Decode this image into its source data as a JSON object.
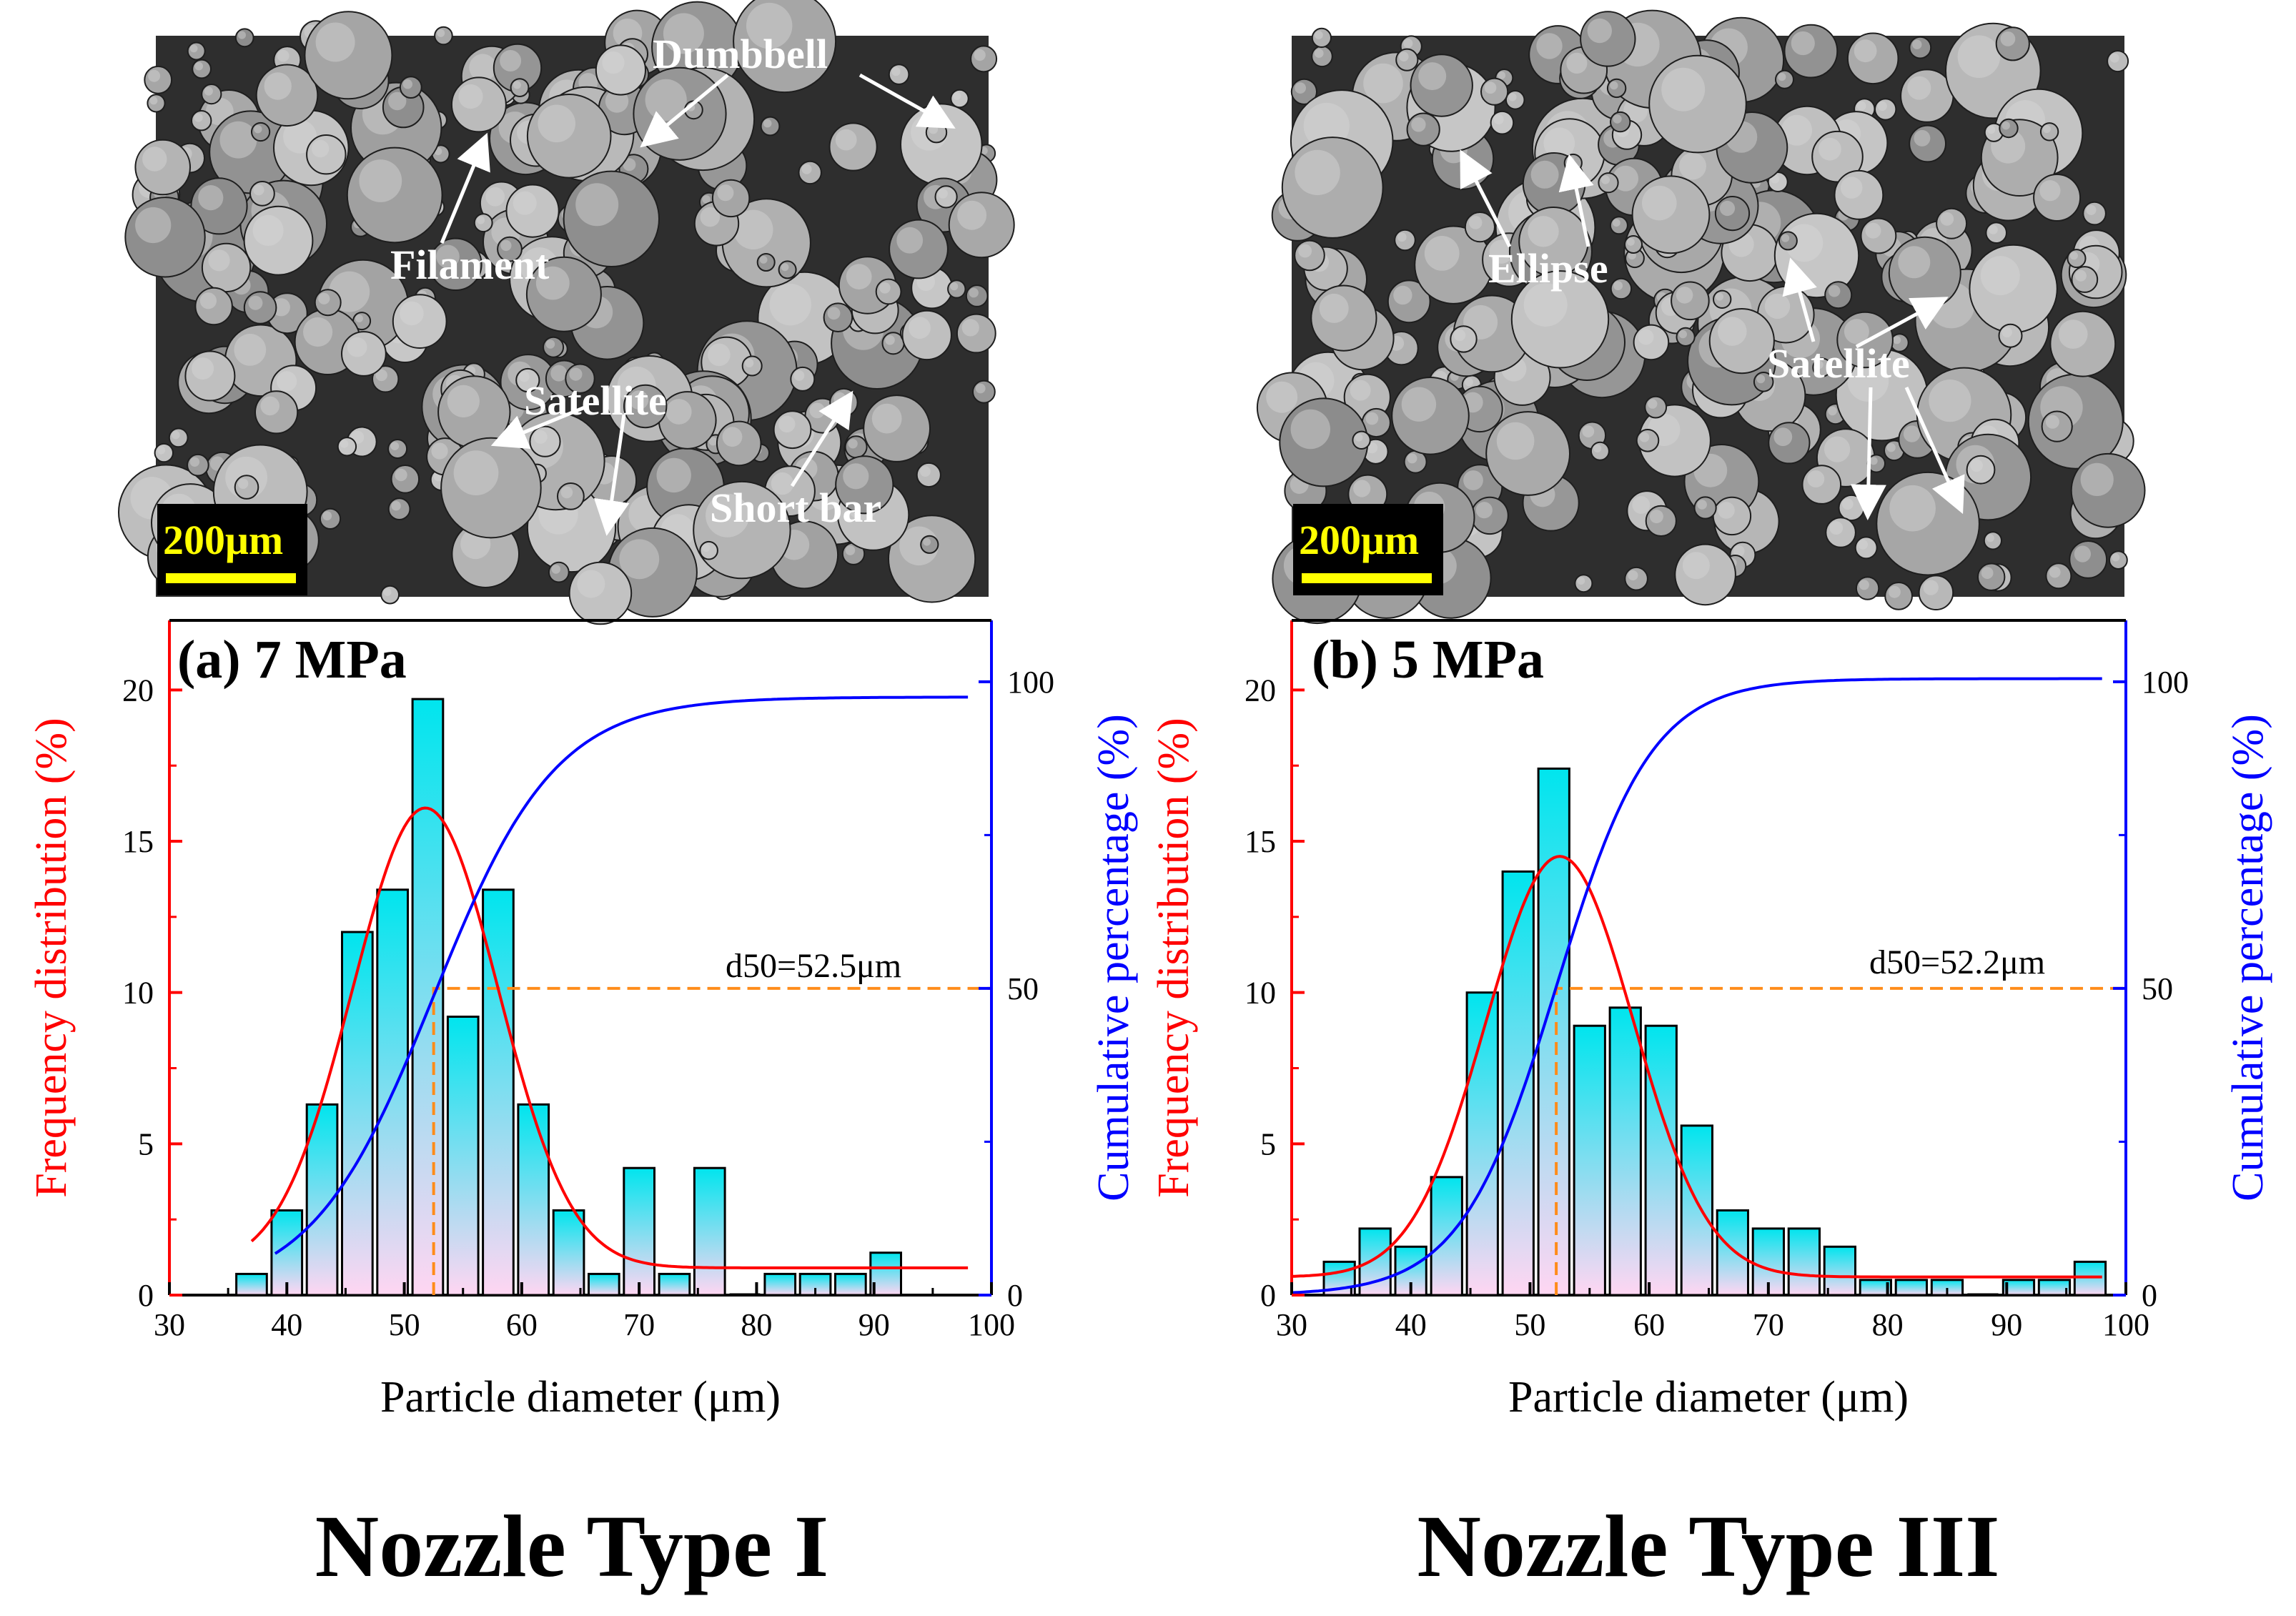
{
  "colors": {
    "frequency_axis": "#ff0000",
    "cumulative_axis": "#0000ff",
    "d50_line": "#ff8c1a",
    "bar_top": "#00e5ee",
    "bar_bottom": "#ffd6f2",
    "scale_bar": "#ffff00",
    "micrograph_bg": "#2b2b2b",
    "particle": "#a8a8a8"
  },
  "panels": [
    {
      "micrograph": {
        "scale_label": "200μm",
        "labels": {
          "dumbbell": "Dumbbell",
          "filament": "Filament",
          "satellite": "Satellite",
          "short_bar": "Short bar"
        }
      },
      "nozzle_label": "Nozzle Type I"
    },
    {
      "micrograph": {
        "scale_label": "200μm",
        "labels": {
          "ellipse": "Ellipse",
          "satellite": "Satellite"
        }
      },
      "nozzle_label": "Nozzle Type III"
    }
  ],
  "chart_data": [
    {
      "type": "bar",
      "title": "(a) 7 MPa",
      "xlabel": "Particle diameter (μm)",
      "ylabel": "Frequency distribution (%)",
      "y2label": "Cumulative percentage (%)",
      "xlim": [
        30,
        100
      ],
      "ylim": [
        0,
        22.3
      ],
      "y2lim": [
        0,
        110
      ],
      "xticks": [
        30,
        40,
        50,
        60,
        70,
        80,
        90,
        100
      ],
      "yticks": [
        0,
        5,
        10,
        15,
        20
      ],
      "y2ticks": [
        0,
        50,
        100
      ],
      "bar_width": 2.6,
      "bar_centers": [
        37,
        40,
        43,
        46,
        49,
        52,
        55,
        58,
        61,
        64,
        67,
        70,
        73,
        76,
        79,
        82,
        85,
        88,
        91
      ],
      "bar_values": [
        0.7,
        2.8,
        6.3,
        12.0,
        13.4,
        19.7,
        9.2,
        13.4,
        6.3,
        2.8,
        0.7,
        4.2,
        0.7,
        4.2,
        0,
        0.7,
        0.7,
        0.7,
        1.4
      ],
      "fit": {
        "name": "Frequency fit",
        "center": 51.8,
        "sigma": 6.2,
        "amplitude": 15.2,
        "baseline": 0.9,
        "x_range": [
          37,
          98
        ]
      },
      "cumulative": {
        "name": "Cumulative percentage",
        "center": 52.5,
        "scale": 5.2,
        "max": 97.5,
        "x_range": [
          39,
          98
        ]
      },
      "d50": {
        "x": 52.5,
        "y": 50,
        "label": "d50=52.5μm"
      }
    },
    {
      "type": "bar",
      "title": "(b) 5 MPa",
      "xlabel": "Particle diameter (μm)",
      "ylabel": "Frequency distribution (%)",
      "y2label": "Cumulative percentage (%)",
      "xlim": [
        30,
        100
      ],
      "ylim": [
        0,
        22.3
      ],
      "y2lim": [
        0,
        110
      ],
      "xticks": [
        30,
        40,
        50,
        60,
        70,
        80,
        90,
        100
      ],
      "yticks": [
        0,
        5,
        10,
        15,
        20
      ],
      "y2ticks": [
        0,
        50,
        100
      ],
      "bar_width": 2.6,
      "bar_centers": [
        34,
        37,
        40,
        43,
        46,
        49,
        52,
        55,
        58,
        61,
        64,
        67,
        70,
        73,
        76,
        79,
        82,
        85,
        88,
        91,
        94,
        97
      ],
      "bar_values": [
        1.1,
        2.2,
        1.6,
        3.9,
        10.0,
        14.0,
        17.4,
        8.9,
        9.5,
        8.9,
        5.6,
        2.8,
        2.2,
        2.2,
        1.6,
        0.5,
        0.5,
        0.5,
        0,
        0.5,
        0.5,
        1.1
      ],
      "fit": {
        "name": "Frequency fit",
        "center": 52.5,
        "sigma": 6.2,
        "amplitude": 13.9,
        "baseline": 0.6,
        "x_range": [
          30,
          98
        ]
      },
      "cumulative": {
        "name": "Cumulative percentage",
        "center": 52.2,
        "scale": 4.0,
        "max": 100.5,
        "x_range": [
          30,
          98
        ]
      },
      "d50": {
        "x": 52.2,
        "y": 50,
        "label": "d50=52.2μm"
      }
    }
  ]
}
